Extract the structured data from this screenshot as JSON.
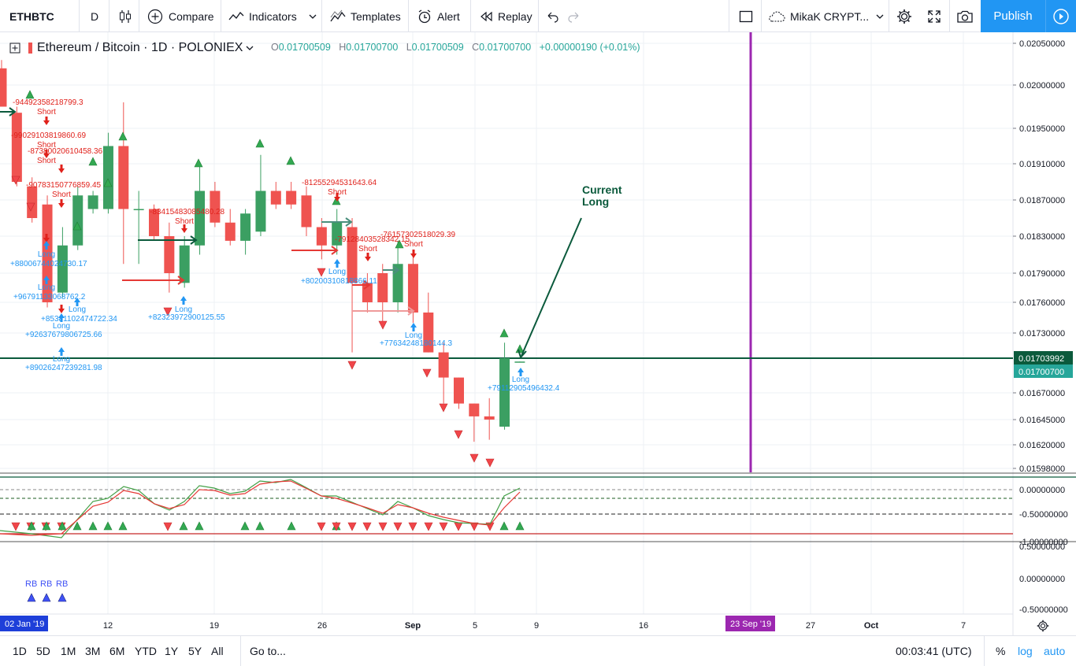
{
  "toolbar": {
    "symbol": "ETHBTC",
    "interval": "D",
    "compare": "Compare",
    "indicators": "Indicators",
    "templates": "Templates",
    "alert": "Alert",
    "replay": "Replay",
    "layout_name": "MikaK CRYPT...",
    "publish": "Publish"
  },
  "legend": {
    "title": "Ethereum / Bitcoin · 1D · POLONIEX",
    "o_label": "O",
    "o": "0.01700509",
    "h_label": "H",
    "h": "0.01700700",
    "l_label": "L",
    "l": "0.01700509",
    "c_label": "C",
    "c": "0.01700700",
    "change": "+0.00000190 (+0.01%)"
  },
  "colors": {
    "up": "#26a69a",
    "up_body": "#3b9f62",
    "down": "#ef5350",
    "signal_long": "#2196f3",
    "signal_short": "#e0211b",
    "marker_up": "#33a852",
    "marker_down": "#f0464a",
    "vertical_line": "#9c27b0",
    "hline": "#0b5a3c",
    "accent": "#2196f3"
  },
  "price_axis": {
    "ticks": [
      "0.02050000",
      "0.02000000",
      "0.01950000",
      "0.01910000",
      "0.01870000",
      "0.01830000",
      "0.01790000",
      "0.01760000",
      "0.01730000",
      "0.01670000",
      "0.01645000",
      "0.01620000",
      "0.01598000"
    ],
    "badge_line": "0.01703992",
    "badge_last": "0.01700700"
  },
  "osc_axis": {
    "ticks": [
      "0.00000000",
      "-0.50000000",
      "-1.00000000"
    ]
  },
  "pane3_axis": {
    "ticks": [
      "0.50000000",
      "0.00000000",
      "-0.50000000"
    ]
  },
  "time_axis": {
    "labels": [
      "12",
      "19",
      "26",
      "Sep",
      "5",
      "9",
      "16",
      "27",
      "Oct",
      "7"
    ],
    "left_badge": "02 Jan '19",
    "date_badge": "23 Sep '19"
  },
  "annotation": {
    "line1": "Current",
    "line2": "Long"
  },
  "signals": {
    "short_labels": [
      {
        "value": "-94492358218799.3",
        "tag": "Short"
      },
      {
        "value": "-99029103819860.69",
        "tag": "Short"
      },
      {
        "value": "-87380020610458.36",
        "tag": "Short"
      },
      {
        "value": "-90783150776859.45",
        "tag": "Short"
      },
      {
        "value": "-83415483085480.28",
        "tag": "Short"
      },
      {
        "value": "-81255294531643.64",
        "tag": "Short"
      },
      {
        "value": "-79128403528342.15",
        "tag": "Short"
      },
      {
        "value": "-76157302518029.39",
        "tag": "Short"
      }
    ],
    "long_labels": [
      {
        "value": "+88006744024730.17",
        "tag": "Long"
      },
      {
        "value": "+96791133068762.2",
        "tag": "Long"
      },
      {
        "value": "+85381102474722.34",
        "tag": "Long"
      },
      {
        "value": "+92637679806725.66",
        "tag": "Long"
      },
      {
        "value": "+89026247239281.98",
        "tag": "Long"
      },
      {
        "value": "+82323972900125.55",
        "tag": "Long"
      },
      {
        "value": "+80200310818866.11",
        "tag": "Long"
      },
      {
        "value": "+77634248180144.3",
        "tag": "Long"
      },
      {
        "value": "+79112905496432.4",
        "tag": "Long"
      }
    ]
  },
  "pane3": {
    "rb_labels": [
      "RB",
      "RB",
      "RB"
    ]
  },
  "bottombar": {
    "ranges": [
      "1D",
      "5D",
      "1M",
      "3M",
      "6M",
      "YTD",
      "1Y",
      "5Y",
      "All"
    ],
    "goto": "Go to...",
    "clock": "00:03:41 (UTC)",
    "pct": "%",
    "log": "log",
    "auto": "auto"
  },
  "chart_data": {
    "type": "candlestick",
    "symbol": "ETHBTC",
    "exchange": "POLONIEX",
    "interval": "1D",
    "ylim": [
      0.01598,
      0.0206
    ],
    "candles": [
      {
        "o": 0.0202,
        "h": 0.0203,
        "l": 0.01975,
        "c": 0.01975
      },
      {
        "o": 0.01968,
        "h": 0.01975,
        "l": 0.01885,
        "c": 0.0189
      },
      {
        "o": 0.01885,
        "h": 0.01895,
        "l": 0.01845,
        "c": 0.0185
      },
      {
        "o": 0.01865,
        "h": 0.01875,
        "l": 0.01755,
        "c": 0.0176
      },
      {
        "o": 0.0177,
        "h": 0.0184,
        "l": 0.01765,
        "c": 0.0182
      },
      {
        "o": 0.0182,
        "h": 0.01885,
        "l": 0.01815,
        "c": 0.01875
      },
      {
        "o": 0.0186,
        "h": 0.0188,
        "l": 0.01855,
        "c": 0.01875
      },
      {
        "o": 0.0186,
        "h": 0.01945,
        "l": 0.01855,
        "c": 0.0193
      },
      {
        "o": 0.0193,
        "h": 0.0198,
        "l": 0.018,
        "c": 0.0186
      },
      {
        "o": 0.0186,
        "h": 0.0188,
        "l": 0.018,
        "c": 0.0186
      },
      {
        "o": 0.0186,
        "h": 0.01865,
        "l": 0.01825,
        "c": 0.0183
      },
      {
        "o": 0.0183,
        "h": 0.01845,
        "l": 0.0177,
        "c": 0.0179
      },
      {
        "o": 0.0178,
        "h": 0.0183,
        "l": 0.01775,
        "c": 0.0182
      },
      {
        "o": 0.0182,
        "h": 0.0191,
        "l": 0.0181,
        "c": 0.0188
      },
      {
        "o": 0.0188,
        "h": 0.0189,
        "l": 0.0184,
        "c": 0.01845
      },
      {
        "o": 0.01845,
        "h": 0.0186,
        "l": 0.0182,
        "c": 0.01825
      },
      {
        "o": 0.01825,
        "h": 0.0186,
        "l": 0.0181,
        "c": 0.01855
      },
      {
        "o": 0.01835,
        "h": 0.0192,
        "l": 0.0183,
        "c": 0.0188
      },
      {
        "o": 0.0188,
        "h": 0.0189,
        "l": 0.0186,
        "c": 0.01865
      },
      {
        "o": 0.0188,
        "h": 0.0189,
        "l": 0.0186,
        "c": 0.01865
      },
      {
        "o": 0.01875,
        "h": 0.01885,
        "l": 0.0183,
        "c": 0.0184
      },
      {
        "o": 0.0184,
        "h": 0.0185,
        "l": 0.01805,
        "c": 0.0182
      },
      {
        "o": 0.0182,
        "h": 0.0186,
        "l": 0.0181,
        "c": 0.01845
      },
      {
        "o": 0.0184,
        "h": 0.0185,
        "l": 0.0171,
        "c": 0.0178
      },
      {
        "o": 0.0178,
        "h": 0.0179,
        "l": 0.0175,
        "c": 0.0176
      },
      {
        "o": 0.0179,
        "h": 0.018,
        "l": 0.0174,
        "c": 0.0176
      },
      {
        "o": 0.0176,
        "h": 0.01825,
        "l": 0.0175,
        "c": 0.018
      },
      {
        "o": 0.018,
        "h": 0.0181,
        "l": 0.0174,
        "c": 0.0175
      },
      {
        "o": 0.0175,
        "h": 0.0177,
        "l": 0.0171,
        "c": 0.0171
      },
      {
        "o": 0.0171,
        "h": 0.0172,
        "l": 0.0166,
        "c": 0.01685
      },
      {
        "o": 0.01685,
        "h": 0.01685,
        "l": 0.01655,
        "c": 0.0166
      },
      {
        "o": 0.0166,
        "h": 0.0166,
        "l": 0.01623,
        "c": 0.01648
      },
      {
        "o": 0.01648,
        "h": 0.01665,
        "l": 0.01625,
        "c": 0.01645
      },
      {
        "o": 0.01638,
        "h": 0.0172,
        "l": 0.01635,
        "c": 0.01704
      },
      {
        "o": 0.01700509,
        "h": 0.017007,
        "l": 0.01700509,
        "c": 0.017007
      }
    ]
  }
}
